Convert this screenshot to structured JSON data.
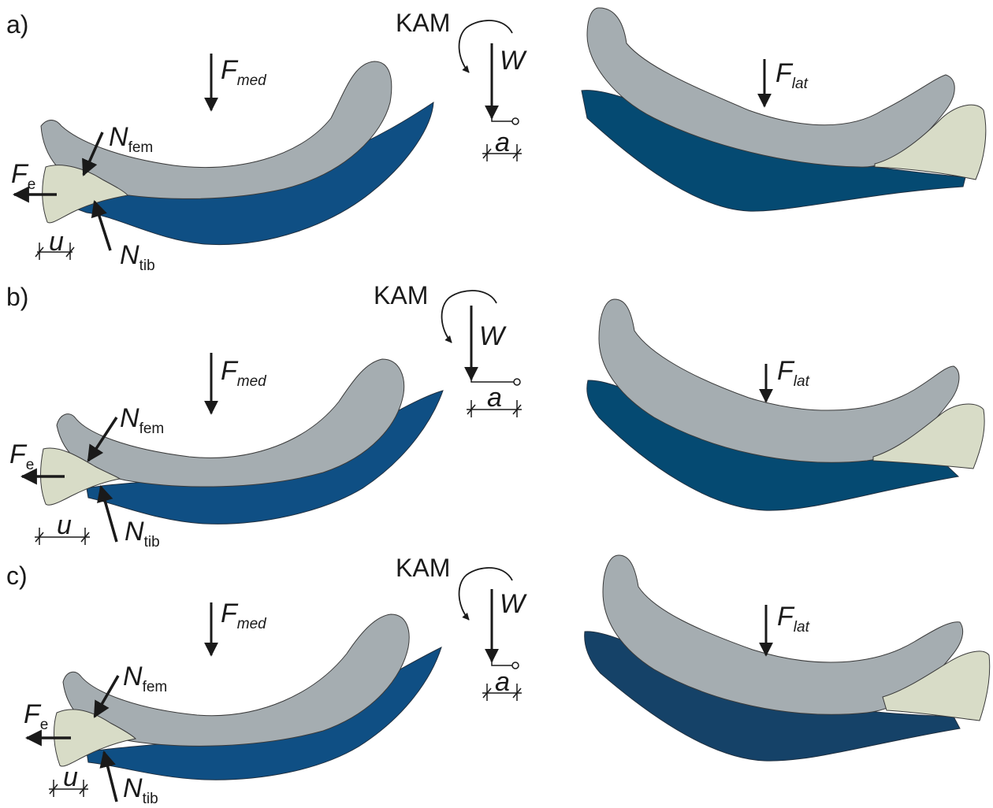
{
  "panels": [
    {
      "label": "a)",
      "kam": "KAM",
      "w": "W",
      "a": "a",
      "f_med": {
        "main": "F",
        "sub": "med"
      },
      "f_lat": {
        "main": "F",
        "sub": "lat"
      },
      "n_fem": {
        "main": "N",
        "sub": "fem"
      },
      "n_tib": {
        "main": "N",
        "sub": "tib"
      },
      "f_e": {
        "main": "F",
        "sub": "e"
      },
      "u": "u"
    },
    {
      "label": "b)",
      "kam": "KAM",
      "w": "W",
      "a": "a",
      "f_med": {
        "main": "F",
        "sub": "med"
      },
      "f_lat": {
        "main": "F",
        "sub": "lat"
      },
      "n_fem": {
        "main": "N",
        "sub": "fem"
      },
      "n_tib": {
        "main": "N",
        "sub": "tib"
      },
      "f_e": {
        "main": "F",
        "sub": "e"
      },
      "u": "u"
    },
    {
      "label": "c)",
      "kam": "KAM",
      "w": "W",
      "a": "a",
      "f_med": {
        "main": "F",
        "sub": "med"
      },
      "f_lat": {
        "main": "F",
        "sub": "lat"
      },
      "n_fem": {
        "main": "N",
        "sub": "fem"
      },
      "n_tib": {
        "main": "N",
        "sub": "tib"
      },
      "f_e": {
        "main": "F",
        "sub": "e"
      },
      "u": "u"
    }
  ],
  "colors": {
    "femur": "#a5adb1",
    "tibia_a": "#0f4f84",
    "tibia_lat": "#054a72",
    "meniscus": "#d8dcc7",
    "outline": "#3a3a3a",
    "arrow": "#1a1a1a"
  }
}
